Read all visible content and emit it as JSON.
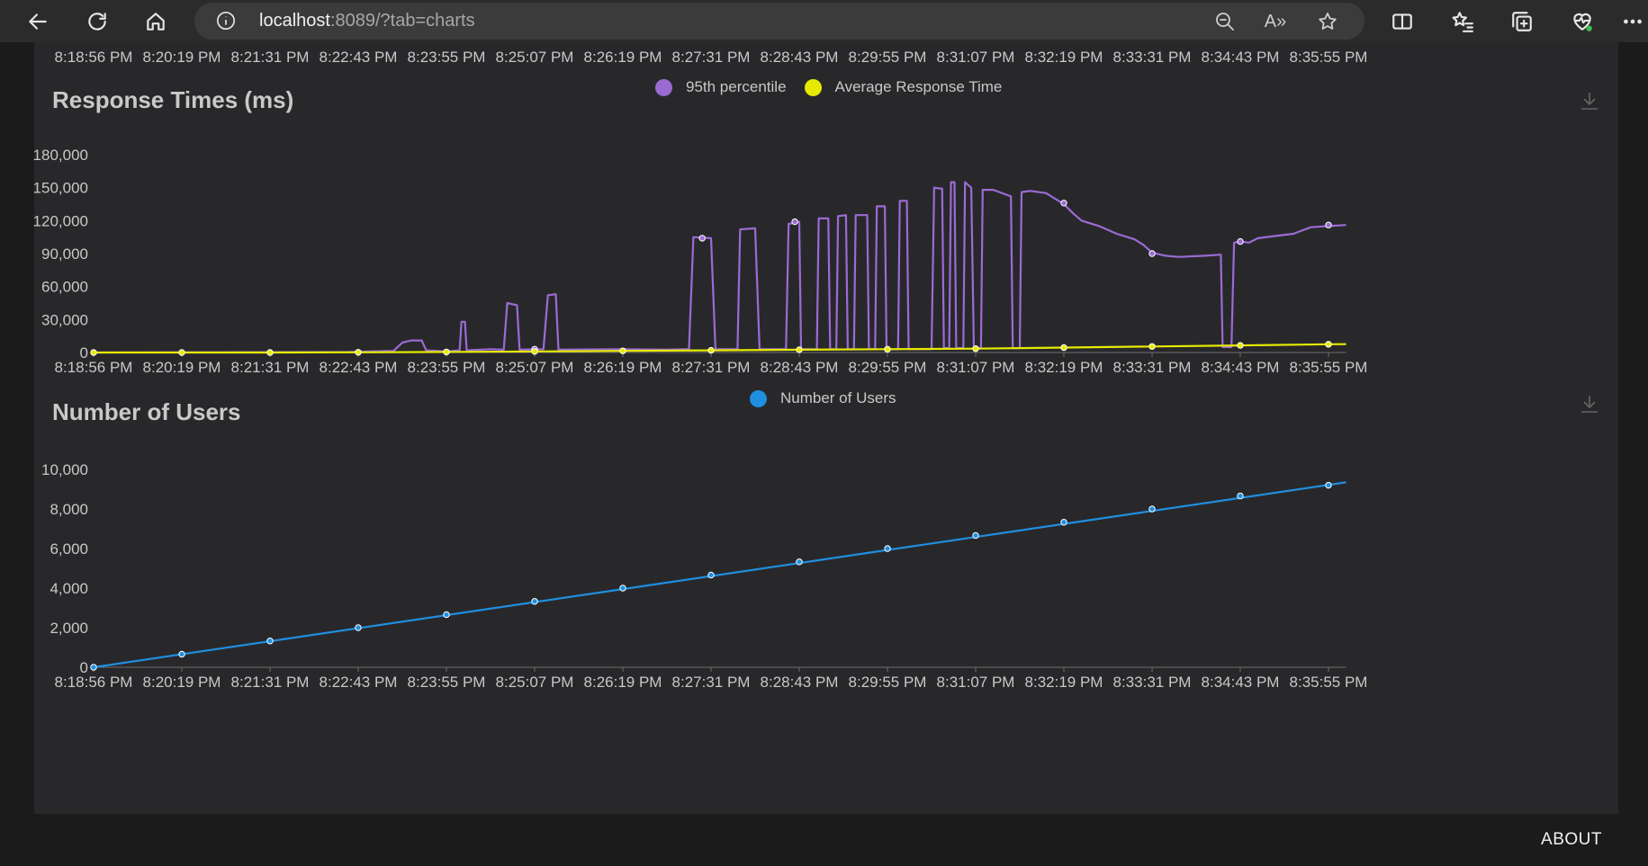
{
  "browser": {
    "url_host": "localhost",
    "url_rest": ":8089/?tab=charts",
    "read_aloud_label": "A»"
  },
  "time_ticks": [
    "8:18:56 PM",
    "8:20:19 PM",
    "8:21:31 PM",
    "8:22:43 PM",
    "8:23:55 PM",
    "8:25:07 PM",
    "8:26:19 PM",
    "8:27:31 PM",
    "8:28:43 PM",
    "8:29:55 PM",
    "8:31:07 PM",
    "8:32:19 PM",
    "8:33:31 PM",
    "8:34:43 PM",
    "8:35:55 PM"
  ],
  "footer": {
    "about_label": "ABOUT"
  },
  "chart_data": [
    {
      "type": "line",
      "title": "Response Times (ms)",
      "xlabel": "",
      "ylabel": "",
      "ylim": [
        0,
        180000
      ],
      "yticks": [
        "0",
        "30,000",
        "60,000",
        "90,000",
        "120,000",
        "150,000",
        "180,000"
      ],
      "legend_position": "top-center",
      "grid": false,
      "x_range": [
        0,
        14.2
      ],
      "series": [
        {
          "name": "95th percentile",
          "color": "#9b6bd3",
          "points": [
            [
              0,
              0
            ],
            [
              2.9,
              500
            ],
            [
              3.4,
              1500
            ],
            [
              3.5,
              9000
            ],
            [
              3.6,
              11000
            ],
            [
              3.72,
              11000
            ],
            [
              3.77,
              2000
            ],
            [
              4.0,
              1000
            ],
            [
              4.15,
              2000
            ],
            [
              4.17,
              28000
            ],
            [
              4.21,
              28000
            ],
            [
              4.23,
              2000
            ],
            [
              4.5,
              3000
            ],
            [
              4.65,
              2500
            ],
            [
              4.69,
              45000
            ],
            [
              4.8,
              43000
            ],
            [
              4.83,
              2500
            ],
            [
              5.1,
              3000
            ],
            [
              5.15,
              52000
            ],
            [
              5.24,
              53000
            ],
            [
              5.27,
              2500
            ],
            [
              6.0,
              3000
            ],
            [
              6.5,
              2500
            ],
            [
              6.75,
              3000
            ],
            [
              6.8,
              105000
            ],
            [
              7.0,
              104000
            ],
            [
              7.05,
              3000
            ],
            [
              7.3,
              3000
            ],
            [
              7.33,
              112000
            ],
            [
              7.5,
              113000
            ],
            [
              7.55,
              3000
            ],
            [
              7.85,
              3000
            ],
            [
              7.88,
              117000
            ],
            [
              8.0,
              119000
            ],
            [
              8.02,
              3000
            ],
            [
              8.2,
              3000
            ],
            [
              8.22,
              122000
            ],
            [
              8.33,
              122000
            ],
            [
              8.35,
              3000
            ],
            [
              8.42,
              3000
            ],
            [
              8.44,
              124000
            ],
            [
              8.53,
              125000
            ],
            [
              8.55,
              3000
            ],
            [
              8.62,
              3000
            ],
            [
              8.64,
              125000
            ],
            [
              8.77,
              125000
            ],
            [
              8.79,
              3000
            ],
            [
              8.86,
              3000
            ],
            [
              8.88,
              133000
            ],
            [
              8.97,
              133000
            ],
            [
              8.99,
              3000
            ],
            [
              9.12,
              3000
            ],
            [
              9.14,
              138000
            ],
            [
              9.22,
              138000
            ],
            [
              9.24,
              3000
            ],
            [
              9.5,
              3000
            ],
            [
              9.53,
              150000
            ],
            [
              9.62,
              149000
            ],
            [
              9.64,
              4000
            ],
            [
              9.7,
              4000
            ],
            [
              9.72,
              155000
            ],
            [
              9.76,
              155000
            ],
            [
              9.78,
              4000
            ],
            [
              9.86,
              4000
            ],
            [
              9.88,
              155000
            ],
            [
              9.95,
              150000
            ],
            [
              9.98,
              4000
            ],
            [
              10.06,
              4000
            ],
            [
              10.08,
              148000
            ],
            [
              10.2,
              148000
            ],
            [
              10.4,
              142000
            ],
            [
              10.42,
              4000
            ],
            [
              10.5,
              4000
            ],
            [
              10.52,
              146000
            ],
            [
              10.62,
              147000
            ],
            [
              10.8,
              145000
            ],
            [
              10.9,
              140000
            ],
            [
              11.0,
              135000
            ],
            [
              11.1,
              127000
            ],
            [
              11.2,
              120000
            ],
            [
              11.4,
              115000
            ],
            [
              11.6,
              108000
            ],
            [
              11.8,
              103000
            ],
            [
              11.9,
              98000
            ],
            [
              12.0,
              91000
            ],
            [
              12.15,
              88000
            ],
            [
              12.3,
              87000
            ],
            [
              12.6,
              88000
            ],
            [
              12.78,
              89000
            ],
            [
              12.8,
              5000
            ],
            [
              12.9,
              5000
            ],
            [
              12.93,
              100000
            ],
            [
              13.0,
              101000
            ],
            [
              13.1,
              100000
            ],
            [
              13.2,
              104000
            ],
            [
              13.4,
              106000
            ],
            [
              13.6,
              108000
            ],
            [
              13.8,
              114000
            ],
            [
              14.0,
              115000
            ],
            [
              14.2,
              116000
            ]
          ],
          "markers": [
            [
              6.9,
              104000
            ],
            [
              7.95,
              119000
            ],
            [
              11.0,
              136000
            ],
            [
              12.0,
              90000
            ],
            [
              13.0,
              101000
            ],
            [
              14.0,
              116000
            ],
            [
              5.0,
              3000
            ]
          ]
        },
        {
          "name": "Average Response Time",
          "color": "#e6ea00",
          "points": [
            [
              0,
              0
            ],
            [
              1,
              0
            ],
            [
              2,
              0
            ],
            [
              3,
              200
            ],
            [
              4,
              500
            ],
            [
              5,
              1000
            ],
            [
              6,
              1500
            ],
            [
              7,
              2000
            ],
            [
              8,
              2500
            ],
            [
              9,
              3000
            ],
            [
              10,
              3500
            ],
            [
              11,
              4500
            ],
            [
              12,
              5500
            ],
            [
              13,
              6500
            ],
            [
              14,
              7500
            ],
            [
              14.2,
              7600
            ]
          ],
          "markers": [
            [
              0,
              0
            ],
            [
              1,
              0
            ],
            [
              2,
              0
            ],
            [
              3,
              200
            ],
            [
              4,
              500
            ],
            [
              5,
              1000
            ],
            [
              6,
              1500
            ],
            [
              7,
              2000
            ],
            [
              8,
              2500
            ],
            [
              9,
              3000
            ],
            [
              10,
              3500
            ],
            [
              11,
              4500
            ],
            [
              12,
              5500
            ],
            [
              13,
              6500
            ],
            [
              14,
              7500
            ]
          ]
        }
      ]
    },
    {
      "type": "line",
      "title": "Number of Users",
      "xlabel": "",
      "ylabel": "",
      "ylim": [
        0,
        10000
      ],
      "yticks": [
        "0",
        "2,000",
        "4,000",
        "6,000",
        "8,000",
        "10,000"
      ],
      "legend_position": "top-center",
      "grid": false,
      "x_range": [
        0,
        14.2
      ],
      "series": [
        {
          "name": "Number of Users",
          "color": "#1f8fe0",
          "points": [
            [
              0,
              0
            ],
            [
              14.2,
              9350
            ]
          ],
          "markers": [
            [
              0,
              0
            ],
            [
              1,
              660
            ],
            [
              2,
              1330
            ],
            [
              3,
              2000
            ],
            [
              4,
              2660
            ],
            [
              5,
              3330
            ],
            [
              6,
              4000
            ],
            [
              7,
              4660
            ],
            [
              8,
              5330
            ],
            [
              9,
              6000
            ],
            [
              10,
              6660
            ],
            [
              11,
              7330
            ],
            [
              12,
              8000
            ],
            [
              13,
              8660
            ],
            [
              14,
              9200
            ]
          ]
        }
      ]
    }
  ]
}
